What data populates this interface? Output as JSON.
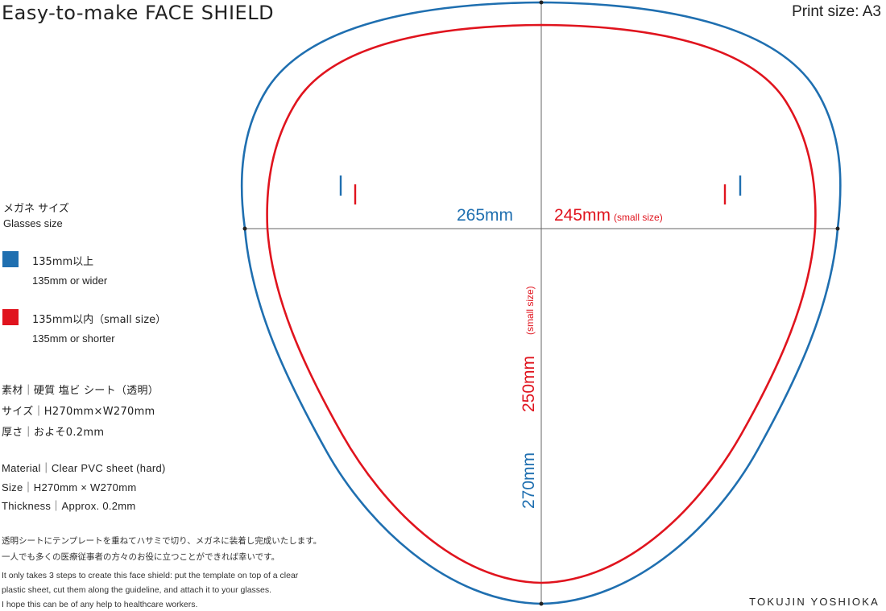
{
  "header": {
    "title": "Easy-to-make  FACE SHIELD",
    "print_size": "Print size: A3"
  },
  "legend": {
    "heading_jp": "メガネ サイズ",
    "heading_en": "Glasses size",
    "items": [
      {
        "color": "#1f6fb0",
        "label_jp": "135mm以上",
        "label_en": "135mm or wider"
      },
      {
        "color": "#e0141e",
        "label_jp": "135mm以内（small size）",
        "label_en": "135mm or shorter"
      }
    ]
  },
  "specs_jp": [
    "素材｜硬質 塩ビ シート（透明）",
    "サイズ｜H270mm×W270mm",
    "厚さ｜およそ0.2mm"
  ],
  "specs_en": [
    "Material｜Clear PVC sheet (hard)",
    "Size｜H270mm × W270mm",
    "Thickness｜Approx. 0.2mm"
  ],
  "notes_jp": [
    "透明シートにテンプレートを重ねてハサミで切り、メガネに装着し完成いたします。",
    "一人でも多くの医療従事者の方々のお役に立つことができれば幸いです。"
  ],
  "notes_en": [
    "It only takes 3 steps to create this face shield: put the template on top of a clear",
    "plastic sheet, cut them along the guideline, and attach it to your glasses.",
    "I hope this can be of any help to healthcare workers."
  ],
  "measurements": {
    "width_large": "265mm",
    "width_small": "245mm",
    "width_small_note": "(small size)",
    "height_large": "270mm",
    "height_small": "250mm",
    "height_small_note": "(small size)"
  },
  "colors": {
    "blue": "#1f6fb0",
    "red": "#e0141e",
    "guide": "#555555"
  },
  "designer": "TOKUJIN YOSHIOKA"
}
